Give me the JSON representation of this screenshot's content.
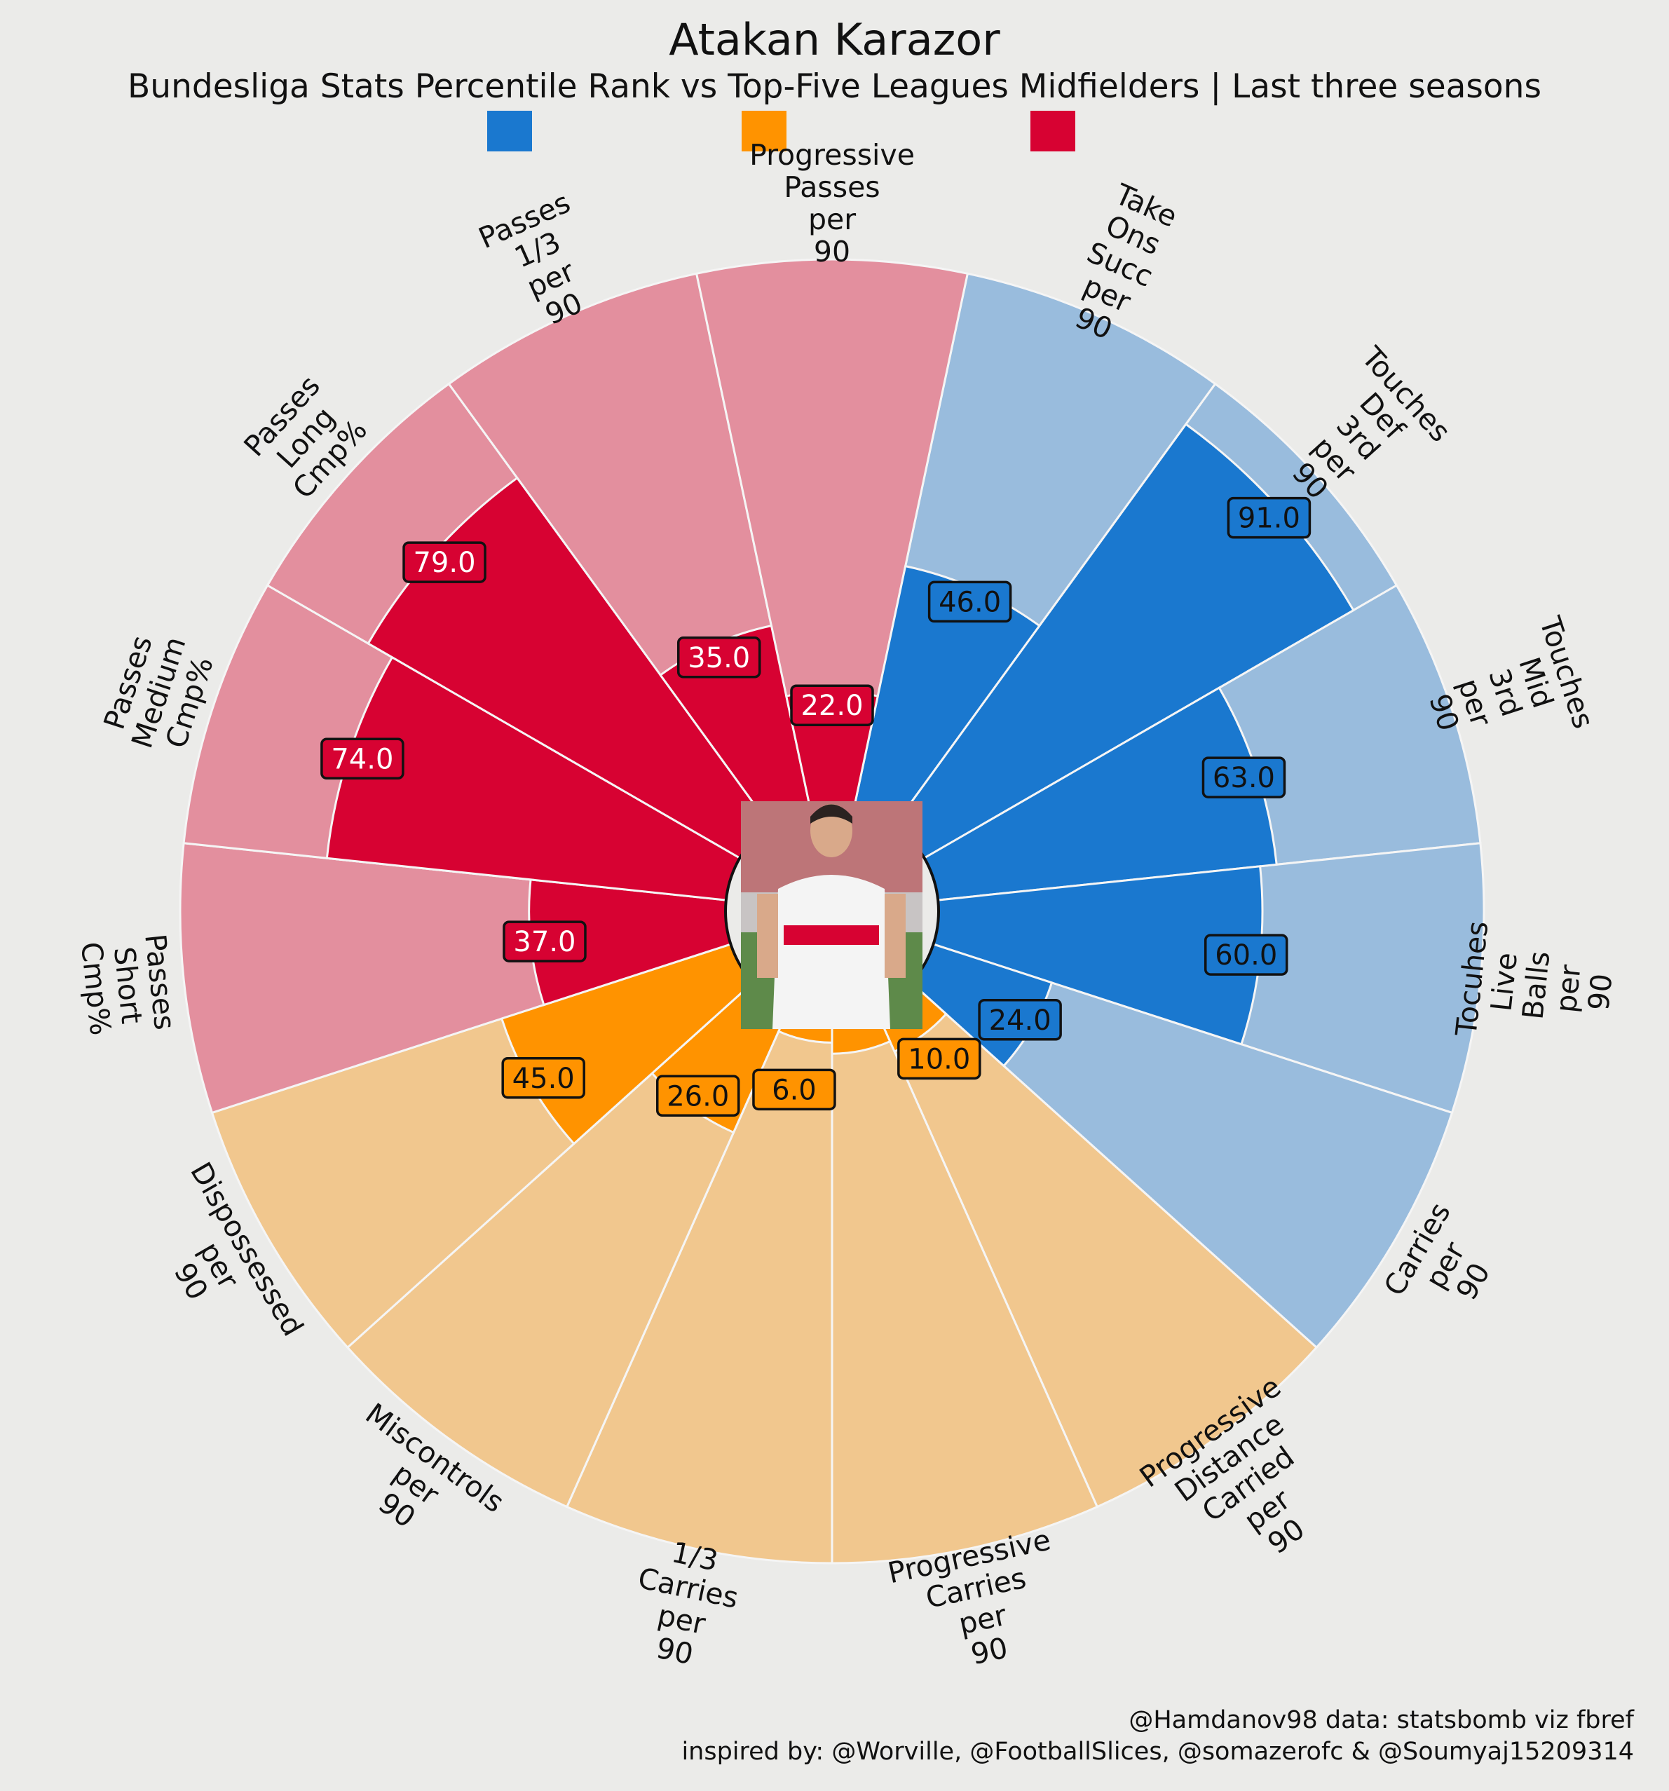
{
  "title": "Atakan Karazor",
  "subtitle": "Bundesliga Stats Percentile Rank vs Top-Five Leagues Midfielders | Last three seasons",
  "credit_line1": "@Hamdanov98 data: statsbomb viz fbref",
  "credit_line2": "inspired by: @Worville, @FootballSlices, @somazerofc & @Soumyaj15209314",
  "colors": {
    "background": "#ebebe9",
    "blue": "#1a78cf",
    "blue_light": "#99bcdd",
    "orange": "#ff9300",
    "orange_light": "#f1c78e",
    "red": "#d70232",
    "red_light": "#e38f9e"
  },
  "center_image": "player-photo",
  "chart_data": {
    "type": "pizza",
    "range": [
      0,
      100
    ],
    "legend_placement": "top",
    "legend": [
      {
        "color": "#1a78cf",
        "name": ""
      },
      {
        "color": "#ff9300",
        "name": ""
      },
      {
        "color": "#d70232",
        "name": ""
      }
    ],
    "slices": [
      {
        "label": "Take Ons Succ per 90",
        "value": 46.0,
        "value_text": "46.0",
        "group": "blue"
      },
      {
        "label": "Touches Def 3rd per 90",
        "value": 91.0,
        "value_text": "91.0",
        "group": "blue"
      },
      {
        "label": "Touches Mid 3rd per 90",
        "value": 63.0,
        "value_text": "63.0",
        "group": "blue"
      },
      {
        "label": "Tocuhes Live Balls per 90",
        "value": 60.0,
        "value_text": "60.0",
        "group": "blue"
      },
      {
        "label": "Carries per 90",
        "value": 24.0,
        "value_text": "24.0",
        "group": "blue"
      },
      {
        "label": "Progressive Distance Carried per 90",
        "value": 10.0,
        "value_text": "10.0",
        "group": "orange"
      },
      {
        "label": "Progressive Carries per 90",
        "value": 8.0,
        "value_text": "",
        "group": "orange"
      },
      {
        "label": "1/3 Carries per 90",
        "value": 6.0,
        "value_text": "6.0",
        "group": "orange"
      },
      {
        "label": "Miscontrols per 90",
        "value": 26.0,
        "value_text": "26.0",
        "group": "orange"
      },
      {
        "label": "Dispossessed per 90",
        "value": 45.0,
        "value_text": "45.0",
        "group": "orange"
      },
      {
        "label": "Passes Short Cmp%",
        "value": 37.0,
        "value_text": "37.0",
        "group": "red"
      },
      {
        "label": "Passes Medium Cmp%",
        "value": 74.0,
        "value_text": "74.0",
        "group": "red"
      },
      {
        "label": "Passes Long Cmp%",
        "value": 79.0,
        "value_text": "79.0",
        "group": "red"
      },
      {
        "label": "Passes 1/3 per 90",
        "value": 35.0,
        "value_text": "35.0",
        "group": "red"
      },
      {
        "label": "Progressive Passes per 90",
        "value": 22.0,
        "value_text": "22.0",
        "group": "red"
      }
    ]
  }
}
